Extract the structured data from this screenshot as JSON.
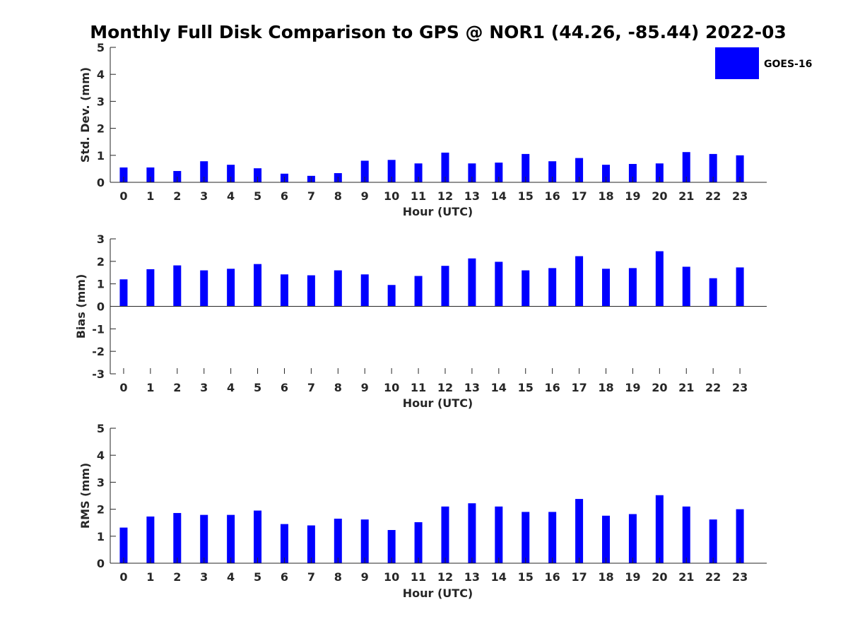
{
  "title": "Monthly Full Disk Comparison to GPS @ NOR1 (44.26, -85.44) 2022-03",
  "legend": {
    "label": "GOES-16",
    "color": "#0000ff"
  },
  "chart_data": [
    {
      "type": "bar",
      "categories": [
        "0",
        "1",
        "2",
        "3",
        "4",
        "5",
        "6",
        "7",
        "8",
        "9",
        "10",
        "11",
        "12",
        "13",
        "14",
        "15",
        "16",
        "17",
        "18",
        "19",
        "20",
        "21",
        "22",
        "23"
      ],
      "series": [
        {
          "name": "GOES-16",
          "values": [
            0.55,
            0.55,
            0.42,
            0.78,
            0.65,
            0.52,
            0.32,
            0.24,
            0.34,
            0.8,
            0.83,
            0.7,
            1.1,
            0.7,
            0.73,
            1.05,
            0.78,
            0.9,
            0.65,
            0.68,
            0.7,
            1.12,
            1.05,
            1.0
          ]
        }
      ],
      "xlabel": "Hour (UTC)",
      "ylabel": "Std. Dev. (mm)",
      "ylim": [
        0,
        5
      ],
      "yticks": [
        "0",
        "1",
        "2",
        "3",
        "4",
        "5"
      ],
      "color": "#0000ff",
      "grid": false,
      "legend_position": "top-right"
    },
    {
      "type": "bar",
      "categories": [
        "0",
        "1",
        "2",
        "3",
        "4",
        "5",
        "6",
        "7",
        "8",
        "9",
        "10",
        "11",
        "12",
        "13",
        "14",
        "15",
        "16",
        "17",
        "18",
        "19",
        "20",
        "21",
        "22",
        "23"
      ],
      "series": [
        {
          "name": "GOES-16",
          "values": [
            1.2,
            1.65,
            1.82,
            1.6,
            1.67,
            1.88,
            1.42,
            1.38,
            1.6,
            1.42,
            0.95,
            1.35,
            1.8,
            2.13,
            1.98,
            1.6,
            1.7,
            2.23,
            1.67,
            1.7,
            2.45,
            1.76,
            1.25,
            1.73
          ]
        }
      ],
      "xlabel": "Hour (UTC)",
      "ylabel": "Bias (mm)",
      "ylim": [
        -3,
        3
      ],
      "yticks": [
        "-3",
        "-2",
        "-1",
        "0",
        "1",
        "2",
        "3"
      ],
      "color": "#0000ff",
      "grid": false
    },
    {
      "type": "bar",
      "categories": [
        "0",
        "1",
        "2",
        "3",
        "4",
        "5",
        "6",
        "7",
        "8",
        "9",
        "10",
        "11",
        "12",
        "13",
        "14",
        "15",
        "16",
        "17",
        "18",
        "19",
        "20",
        "21",
        "22",
        "23"
      ],
      "series": [
        {
          "name": "GOES-16",
          "values": [
            1.32,
            1.73,
            1.86,
            1.79,
            1.79,
            1.95,
            1.45,
            1.4,
            1.65,
            1.62,
            1.23,
            1.52,
            2.1,
            2.22,
            2.1,
            1.9,
            1.9,
            2.38,
            1.76,
            1.82,
            2.52,
            2.1,
            1.62,
            2.0
          ]
        }
      ],
      "xlabel": "Hour (UTC)",
      "ylabel": "RMS (mm)",
      "ylim": [
        0,
        5
      ],
      "yticks": [
        "0",
        "1",
        "2",
        "3",
        "4",
        "5"
      ],
      "color": "#0000ff",
      "grid": false
    }
  ]
}
